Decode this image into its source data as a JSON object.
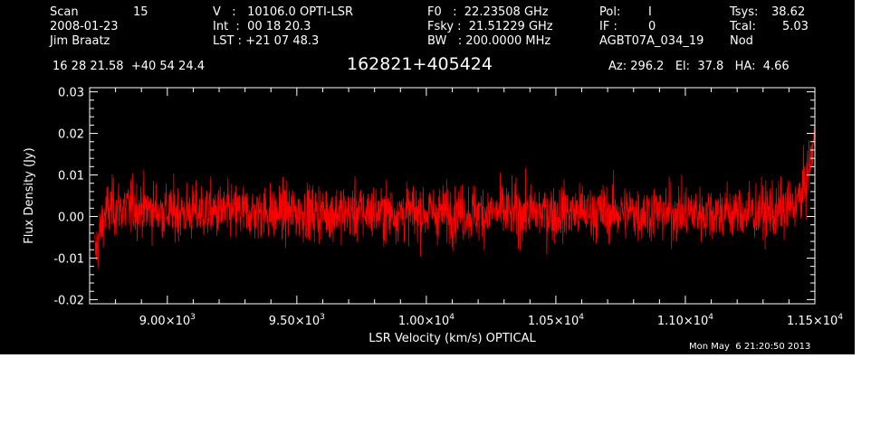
{
  "header": {
    "scan_label": "Scan",
    "scan_value": "15",
    "date": "2008-01-23",
    "observer": "Jim Braatz",
    "v_line": "V   :   10106.0 OPTI-LSR",
    "int_line": "Int  :  00 18 20.3",
    "lst_line": "LST : +21 07 48.3",
    "f0_line": "F0   :  22.23508 GHz",
    "fsky_line": "Fsky :  21.51229 GHz",
    "bw_line": "BW   : 200.0000 MHz",
    "pol_label": "Pol:",
    "pol_value": "I",
    "if_label": "IF :",
    "if_value": "0",
    "project": "AGBT07A_034_19",
    "tsys_label": "Tsys:",
    "tsys_value": "38.62",
    "tcal_label": "Tcal:",
    "tcal_value": "5.03",
    "mode": "Nod",
    "coords": "16 28 21.58  +40 54 24.4",
    "source": "162821+405424",
    "az_el_ha": "Az: 296.2   El:  37.8   HA:  4.66"
  },
  "timestamp": "Mon May  6 21:20:50 2013",
  "colors": {
    "background": "#000000",
    "axes": "#ffffff",
    "trace": "#ff0000"
  },
  "chart_data": {
    "type": "line",
    "title": "162821+405424",
    "xlabel": "LSR Velocity (km/s) OPTICAL",
    "ylabel": "Flux Density (Jy)",
    "xlim": [
      8700,
      11500
    ],
    "ylim": [
      -0.021,
      0.031
    ],
    "x_major_ticks": [
      9000,
      9500,
      10000,
      10500,
      11000,
      11500
    ],
    "x_tick_labels": [
      {
        "mant": "9.00",
        "exp": "3"
      },
      {
        "mant": "9.50",
        "exp": "3"
      },
      {
        "mant": "1.00",
        "exp": "4"
      },
      {
        "mant": "1.05",
        "exp": "4"
      },
      {
        "mant": "1.10",
        "exp": "4"
      },
      {
        "mant": "1.15",
        "exp": "4"
      }
    ],
    "y_major_ticks": [
      -0.02,
      -0.01,
      0.0,
      0.01,
      0.02,
      0.03
    ],
    "y_tick_labels": [
      "-0.02",
      "-0.01",
      "0.00",
      "0.01",
      "0.02",
      "0.03"
    ],
    "grid": false,
    "series": [
      {
        "x": [
          8720,
          8740,
          8760,
          8780,
          8800,
          8900,
          9000,
          9100,
          9200,
          9300,
          9400,
          9500,
          9600,
          9700,
          9800,
          9900,
          10000,
          10100,
          10200,
          10300,
          10400,
          10500,
          10600,
          10700,
          10800,
          10900,
          11000,
          11100,
          11200,
          11300,
          11350,
          11400,
          11420,
          11440,
          11460,
          11480,
          11500
        ],
        "y": [
          -0.009,
          -0.004,
          0.001,
          0.002,
          0.002,
          0.002,
          0.001,
          0.001,
          0.001,
          0.001,
          0.001,
          0.001,
          0.001,
          0.001,
          0.001,
          0.001,
          0.001,
          0.001,
          0.001,
          0.001,
          0.001,
          0.001,
          0.001,
          0.001,
          0.001,
          0.001,
          0.001,
          0.001,
          0.001,
          0.001,
          0.001,
          0.002,
          0.003,
          0.004,
          0.007,
          0.012,
          0.02
        ],
        "noise_rms": 0.0045
      }
    ]
  }
}
